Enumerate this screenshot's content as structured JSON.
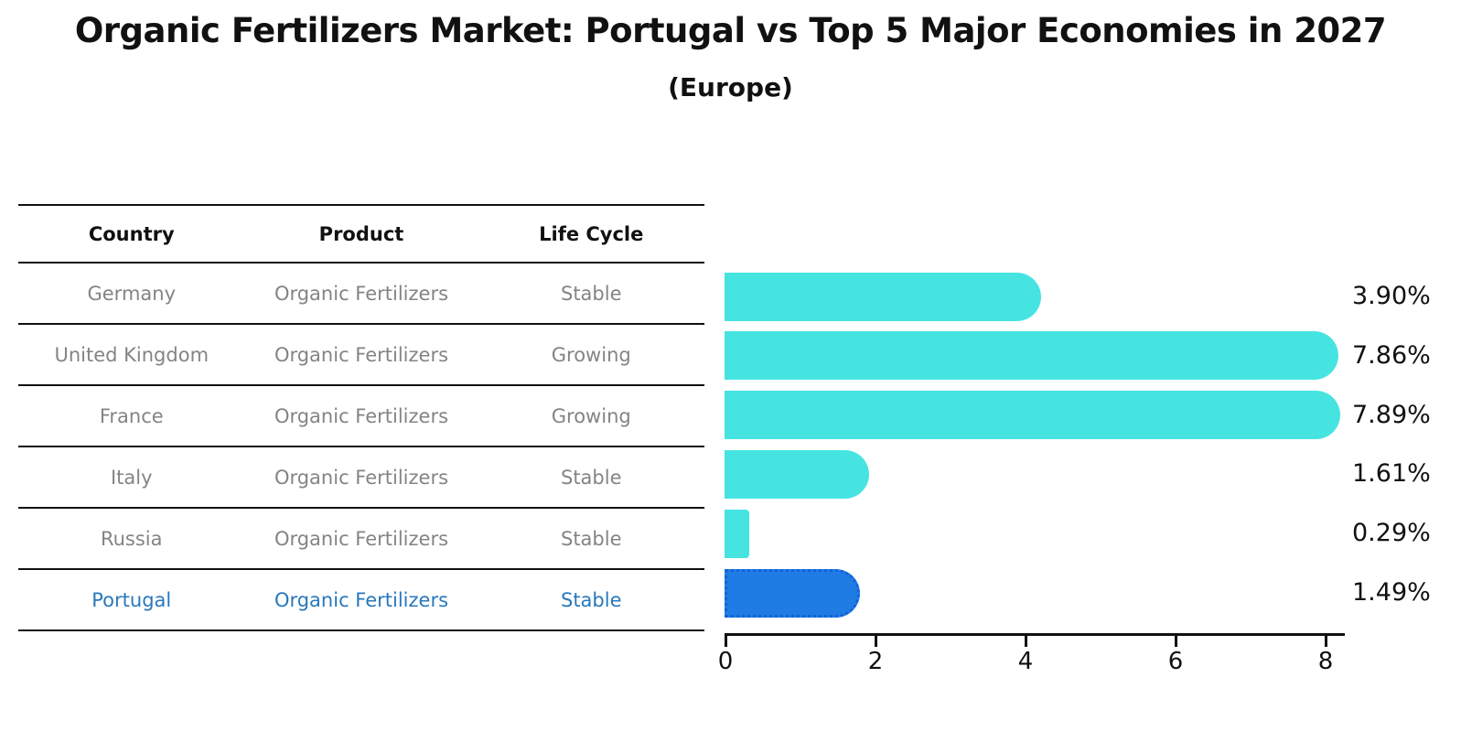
{
  "title": "Organic Fertilizers Market: Portugal vs Top 5 Major Economies in 2027",
  "subtitle": "(Europe)",
  "table": {
    "columns": [
      "Country",
      "Product",
      "Life Cycle"
    ],
    "rows": [
      {
        "country": "Germany",
        "product": "Organic Fertilizers",
        "life_cycle": "Stable",
        "highlight": false
      },
      {
        "country": "United Kingdom",
        "product": "Organic Fertilizers",
        "life_cycle": "Growing",
        "highlight": false
      },
      {
        "country": "France",
        "product": "Organic Fertilizers",
        "life_cycle": "Growing",
        "highlight": false
      },
      {
        "country": "Italy",
        "product": "Organic Fertilizers",
        "life_cycle": "Stable",
        "highlight": false
      },
      {
        "country": "Russia",
        "product": "Organic Fertilizers",
        "life_cycle": "Stable",
        "highlight": false
      },
      {
        "country": "Portugal",
        "product": "Organic Fertilizers",
        "life_cycle": "Stable",
        "highlight": true
      }
    ]
  },
  "chart_data": {
    "type": "bar",
    "orientation": "horizontal",
    "title": "Organic Fertilizers Market: Portugal vs Top 5 Major Economies in 2027 (Europe)",
    "categories": [
      "Germany",
      "United Kingdom",
      "France",
      "Italy",
      "Russia",
      "Portugal"
    ],
    "values": [
      3.9,
      7.86,
      7.89,
      1.61,
      0.29,
      1.49
    ],
    "value_labels": [
      "3.90%",
      "7.86%",
      "7.89%",
      "1.61%",
      "0.29%",
      "1.49%"
    ],
    "x_ticks": [
      0,
      2,
      4,
      6,
      8
    ],
    "xlim": [
      0,
      8.3
    ],
    "grid": false,
    "legend": false,
    "highlight_index": 5
  },
  "colors": {
    "bar": "#46e4e1",
    "highlight_bar": "#1e7ce4",
    "highlight_border": "#1263d6",
    "row_text": "#848484",
    "highlight_text": "#2878bc",
    "axis": "#111111"
  }
}
